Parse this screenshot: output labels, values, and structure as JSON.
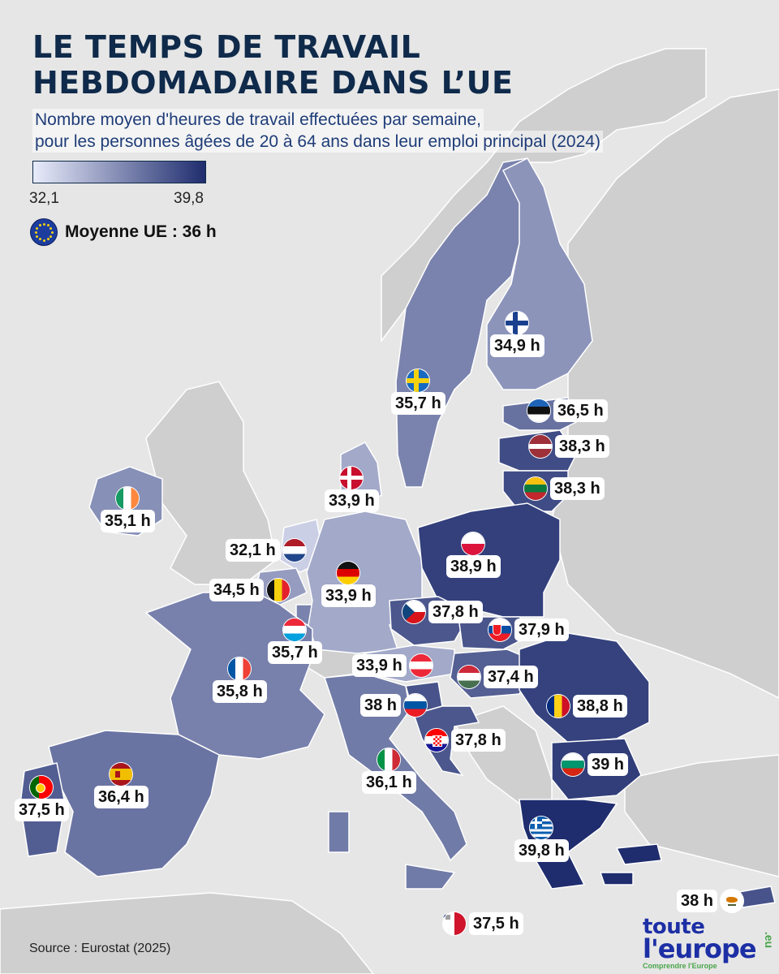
{
  "title_lines": [
    "LE TEMPS DE TRAVAIL",
    "HEBDOMADAIRE DANS L’UE"
  ],
  "subtitle_lines": [
    "Nombre moyen d'heures de travail effectuées par semaine,",
    "pour les personnes âgées de 20 à 64 ans dans leur emploi principal (2024)"
  ],
  "legend": {
    "min": "32,1",
    "max": "39,8",
    "color_min": "#e8ebfa",
    "color_max": "#1f2d6e"
  },
  "eu_average": {
    "label": "Moyenne UE : 36 h",
    "flag": "eu-flag-icon"
  },
  "countries": [
    {
      "id": "finland",
      "value": "34,9 h",
      "hours": 34.9,
      "flag": "finland-flag-icon"
    },
    {
      "id": "sweden",
      "value": "35,7 h",
      "hours": 35.7,
      "flag": "sweden-flag-icon"
    },
    {
      "id": "estonia",
      "value": "36,5 h",
      "hours": 36.5,
      "flag": "estonia-flag-icon"
    },
    {
      "id": "latvia",
      "value": "38,3 h",
      "hours": 38.3,
      "flag": "latvia-flag-icon"
    },
    {
      "id": "lithuania",
      "value": "38,3 h",
      "hours": 38.3,
      "flag": "lithuania-flag-icon"
    },
    {
      "id": "denmark",
      "value": "33,9 h",
      "hours": 33.9,
      "flag": "denmark-flag-icon"
    },
    {
      "id": "ireland",
      "value": "35,1 h",
      "hours": 35.1,
      "flag": "ireland-flag-icon"
    },
    {
      "id": "netherlands",
      "value": "32,1 h",
      "hours": 32.1,
      "flag": "netherlands-flag-icon"
    },
    {
      "id": "belgium",
      "value": "34,5 h",
      "hours": 34.5,
      "flag": "belgium-flag-icon"
    },
    {
      "id": "germany",
      "value": "33,9 h",
      "hours": 33.9,
      "flag": "germany-flag-icon"
    },
    {
      "id": "poland",
      "value": "38,9 h",
      "hours": 38.9,
      "flag": "poland-flag-icon"
    },
    {
      "id": "czechia",
      "value": "37,8 h",
      "hours": 37.8,
      "flag": "czechia-flag-icon"
    },
    {
      "id": "luxembourg",
      "value": "35,7 h",
      "hours": 35.7,
      "flag": "luxembourg-flag-icon"
    },
    {
      "id": "slovakia",
      "value": "37,9 h",
      "hours": 37.9,
      "flag": "slovakia-flag-icon"
    },
    {
      "id": "france",
      "value": "35,8 h",
      "hours": 35.8,
      "flag": "france-flag-icon"
    },
    {
      "id": "austria",
      "value": "33,9 h",
      "hours": 33.9,
      "flag": "austria-flag-icon"
    },
    {
      "id": "hungary",
      "value": "37,4 h",
      "hours": 37.4,
      "flag": "hungary-flag-icon"
    },
    {
      "id": "slovenia",
      "value": "38 h",
      "hours": 38.0,
      "flag": "slovenia-flag-icon"
    },
    {
      "id": "romania",
      "value": "38,8 h",
      "hours": 38.8,
      "flag": "romania-flag-icon"
    },
    {
      "id": "croatia",
      "value": "37,8 h",
      "hours": 37.8,
      "flag": "croatia-flag-icon"
    },
    {
      "id": "italy",
      "value": "36,1 h",
      "hours": 36.1,
      "flag": "italy-flag-icon"
    },
    {
      "id": "bulgaria",
      "value": "39 h",
      "hours": 39.0,
      "flag": "bulgaria-flag-icon"
    },
    {
      "id": "portugal",
      "value": "37,5 h",
      "hours": 37.5,
      "flag": "portugal-flag-icon"
    },
    {
      "id": "spain",
      "value": "36,4 h",
      "hours": 36.4,
      "flag": "spain-flag-icon"
    },
    {
      "id": "greece",
      "value": "39,8 h",
      "hours": 39.8,
      "flag": "greece-flag-icon"
    },
    {
      "id": "cyprus",
      "value": "38 h",
      "hours": 38.0,
      "flag": "cyprus-flag-icon"
    },
    {
      "id": "malta",
      "value": "37,5 h",
      "hours": 37.5,
      "flag": "malta-flag-icon"
    }
  ],
  "source": "Source : Eurostat (2025)",
  "brand": {
    "line1": "toute",
    "line2": "l'europe",
    "tld": ".eu",
    "tagline": "Comprendre l'Europe"
  }
}
